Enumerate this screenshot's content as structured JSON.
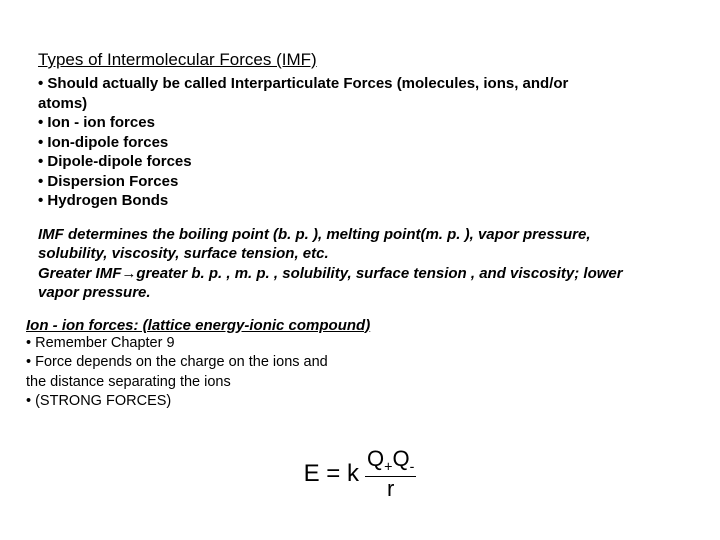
{
  "title": "Types of Intermolecular Forces (IMF)",
  "intro": {
    "line1": "• Should actually be called Interparticulate Forces (molecules, ions, and/or",
    "line2": "atoms)",
    "b1": "• Ion - ion forces",
    "b2": "• Ion-dipole forces",
    "b3": "• Dipole-dipole forces",
    "b4": "• Dispersion Forces",
    "b5": "• Hydrogen Bonds"
  },
  "imf_block": {
    "l1": "IMF determines the boiling point (b. p. ), melting point(m. p. ), vapor pressure,",
    "l2": "solubility, viscosity, surface tension, etc.",
    "l3a": "Greater IMF",
    "arrow": "→",
    "l3b": "greater b. p. , m. p. , solubility, surface tension , and viscosity; lower",
    "l4": "vapor pressure."
  },
  "ionion": {
    "heading": "Ion - ion forces: (lattice energy-ionic compound)",
    "l1": "• Remember Chapter 9",
    "l2": "• Force depends on the charge on the ions and",
    "l3": "the distance separating the ions",
    "l4": "• (STRONG FORCES)"
  },
  "formula": {
    "lhs": "E = k",
    "num_q": "Q",
    "num_plus": "+",
    "num_q2": "Q",
    "num_minus": "-",
    "den": "r"
  },
  "colors": {
    "background": "#ffffff",
    "text": "#000000"
  }
}
